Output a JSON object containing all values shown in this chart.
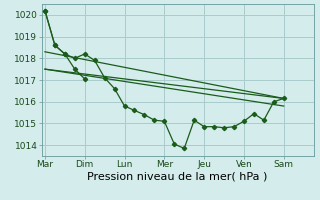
{
  "background_color": "#d4ecec",
  "grid_color": "#aacccc",
  "line_color": "#1a5c1a",
  "ylim": [
    1013.5,
    1020.5
  ],
  "yticks": [
    1014,
    1015,
    1016,
    1017,
    1018,
    1019,
    1020
  ],
  "xlabel": "Pression niveau de la mer( hPa )",
  "xlabel_fontsize": 8,
  "tick_fontsize": 6.5,
  "days": [
    "Mar",
    "Dim",
    "Lun",
    "Mer",
    "Jeu",
    "Ven",
    "Sam"
  ],
  "day_positions": [
    0,
    24,
    48,
    72,
    96,
    120,
    144
  ],
  "xlim": [
    -2,
    162
  ],
  "line1_x": [
    0,
    6,
    12,
    18,
    24,
    30,
    36,
    42,
    48,
    54,
    60,
    66,
    72,
    78,
    84,
    90,
    96,
    102,
    108,
    114,
    120,
    126,
    132,
    138,
    144
  ],
  "line1_y": [
    1020.2,
    1018.6,
    1018.2,
    1018.0,
    1018.2,
    1017.9,
    1017.1,
    1016.6,
    1015.8,
    1015.6,
    1015.4,
    1015.15,
    1015.1,
    1014.05,
    1013.85,
    1015.15,
    1014.85,
    1014.85,
    1014.8,
    1014.85,
    1015.1,
    1015.45,
    1015.15,
    1016.0,
    1016.15
  ],
  "line2_x": [
    0,
    6,
    12,
    18,
    24
  ],
  "line2_y": [
    1020.2,
    1018.6,
    1018.2,
    1017.5,
    1017.05
  ],
  "trend1_x": [
    0,
    144
  ],
  "trend1_y": [
    1018.3,
    1016.15
  ],
  "trend2_x": [
    0,
    144
  ],
  "trend2_y": [
    1017.5,
    1015.8
  ],
  "trend3_x": [
    0,
    144
  ],
  "trend3_y": [
    1017.5,
    1016.15
  ]
}
